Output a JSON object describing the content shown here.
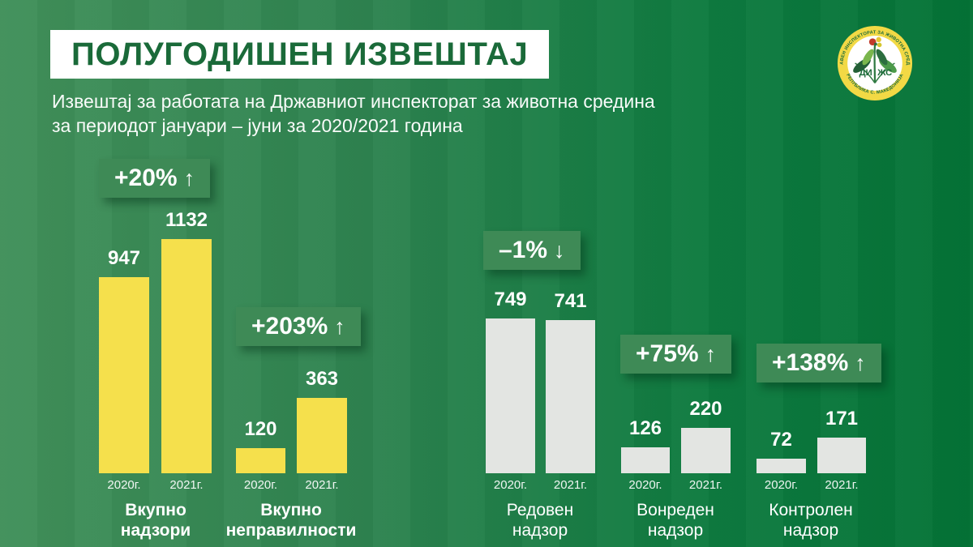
{
  "header": {
    "title": "ПОЛУГОДИШЕН ИЗВЕШТАЈ",
    "subtitle_line1": "Извештај за работата на Државниот инспекторат за животна средина",
    "subtitle_line2": "за периодот јануари – јуни за 2020/2021 година"
  },
  "logo": {
    "top_text": "ДРЖАВЕН ИНСПЕКТОРАТ ЗА ЖИВОТНА СРЕДИНА",
    "bottom_text": "РЕПУБЛИКА С. МАКЕДОНИЈА",
    "center_left": "ДИ",
    "center_right": "ЖС"
  },
  "icons": {
    "arrow_up": "↑",
    "arrow_down": "↓"
  },
  "colors": {
    "background_left": "#41905a",
    "background_right": "#047336",
    "title_green": "#1a6a39",
    "yellow_bar": "#f5e04c",
    "gray_bar": "#e3e5e2",
    "badge_green": "#3e8a56",
    "text_white": "#ffffff"
  },
  "chart_data": [
    {
      "type": "bar",
      "title_lines": [
        "Вкупно",
        "надзори"
      ],
      "title_bold": true,
      "bar_style": "yellow",
      "categories": [
        "2020г.",
        "2021г."
      ],
      "values": [
        947,
        1132
      ],
      "badge": "+20%",
      "badge_direction": "up"
    },
    {
      "type": "bar",
      "title_lines": [
        "Вкупно",
        "неправилности"
      ],
      "title_bold": true,
      "bar_style": "yellow",
      "categories": [
        "2020г.",
        "2021г."
      ],
      "values": [
        120,
        363
      ],
      "badge": "+203%",
      "badge_direction": "up"
    },
    {
      "type": "bar",
      "title_lines": [
        "Редовен",
        "надзор"
      ],
      "title_bold": false,
      "bar_style": "gray",
      "categories": [
        "2020г.",
        "2021г."
      ],
      "values": [
        749,
        741
      ],
      "badge": "–1%",
      "badge_direction": "down"
    },
    {
      "type": "bar",
      "title_lines": [
        "Вонреден",
        "надзор"
      ],
      "title_bold": false,
      "bar_style": "gray",
      "categories": [
        "2020г.",
        "2021г."
      ],
      "values": [
        126,
        220
      ],
      "badge": "+75%",
      "badge_direction": "up"
    },
    {
      "type": "bar",
      "title_lines": [
        "Контролен",
        "надзор"
      ],
      "title_bold": false,
      "bar_style": "gray",
      "categories": [
        "2020г.",
        "2021г."
      ],
      "values": [
        72,
        171
      ],
      "badge": "+138%",
      "badge_direction": "up"
    }
  ]
}
